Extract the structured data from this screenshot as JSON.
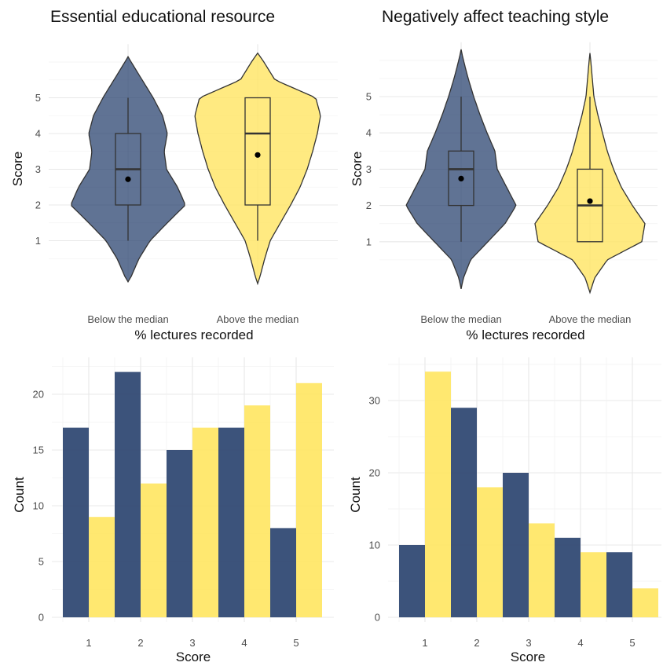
{
  "colors": {
    "below": "#2b4470",
    "above": "#ffe561",
    "outline": "#333333"
  },
  "chart_data": [
    {
      "type": "violin",
      "title": "Essential educational resource",
      "xlabel": "% lectures recorded",
      "ylabel": "Score",
      "categories": [
        "Below the median",
        "Above the median"
      ],
      "yticks": [
        "1",
        "2",
        "3",
        "4",
        "5"
      ],
      "ylim": [
        0.0,
        6.5
      ],
      "box": [
        {
          "group": "Below the median",
          "min": 1,
          "q1": 2,
          "median": 3,
          "q3": 4,
          "max": 5,
          "mean": 2.72
        },
        {
          "group": "Above the median",
          "min": 1,
          "q1": 2,
          "median": 4,
          "q3": 5,
          "max": 5,
          "mean": 3.4
        }
      ],
      "violin_extent": [
        [
          -0.15,
          6.15
        ],
        [
          -0.2,
          6.25
        ]
      ]
    },
    {
      "type": "violin",
      "title": "Negatively affect teaching style",
      "xlabel": "% lectures recorded",
      "ylabel": "Score",
      "categories": [
        "Below the median",
        "Above the median"
      ],
      "yticks": [
        "1",
        "2",
        "3",
        "4",
        "5"
      ],
      "ylim": [
        0.0,
        6.5
      ],
      "box": [
        {
          "group": "Below the median",
          "min": 1,
          "q1": 2,
          "median": 3,
          "q3": 3.5,
          "max": 5,
          "mean": 2.74
        },
        {
          "group": "Above the median",
          "min": 1,
          "q1": 1,
          "median": 2,
          "q3": 3,
          "max": 5,
          "mean": 2.12
        }
      ],
      "violin_extent": [
        [
          -0.3,
          6.3
        ],
        [
          -0.4,
          6.2
        ]
      ]
    },
    {
      "type": "bar",
      "xlabel": "Score",
      "ylabel": "Count",
      "categories": [
        "1",
        "2",
        "3",
        "4",
        "5"
      ],
      "yticks": [
        "0",
        "5",
        "10",
        "15",
        "20"
      ],
      "ylim": [
        0,
        24
      ],
      "series": [
        {
          "group": "below",
          "values": [
            17,
            22,
            15,
            17,
            8
          ]
        },
        {
          "group": "above",
          "values": [
            9,
            12,
            17,
            19,
            21
          ]
        }
      ]
    },
    {
      "type": "bar",
      "xlabel": "Score",
      "ylabel": "Count",
      "categories": [
        "1",
        "2",
        "3",
        "4",
        "5"
      ],
      "yticks": [
        "0",
        "10",
        "20",
        "30"
      ],
      "ylim": [
        0,
        36
      ],
      "series": [
        {
          "group": "below",
          "values": [
            10,
            29,
            20,
            11,
            9
          ]
        },
        {
          "group": "above",
          "values": [
            34,
            18,
            13,
            9,
            4
          ]
        }
      ]
    }
  ]
}
